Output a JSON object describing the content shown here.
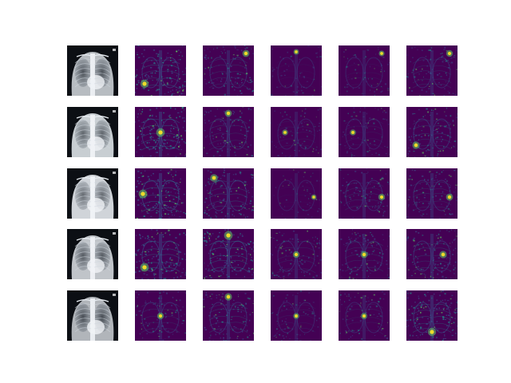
{
  "figure": {
    "rows": 5,
    "columns": 6,
    "column_kinds": [
      "xray",
      "saliency",
      "saliency",
      "saliency",
      "saliency",
      "saliency"
    ],
    "colors": {
      "background": "#ffffff",
      "xray_dark": "#0c0f14",
      "xray_light": "#e8edf2",
      "viridis_low": "#440154",
      "viridis_mid": "#3b528b",
      "viridis_teal": "#21918c",
      "viridis_green": "#5ec962",
      "viridis_high": "#fde725"
    },
    "grid": [
      [
        {
          "kind": "xray",
          "brightness": 0.5
        },
        {
          "kind": "saliency",
          "activity": 0.55,
          "hotspot": "lower-left"
        },
        {
          "kind": "saliency",
          "activity": 0.35,
          "hotspot": "upper-right"
        },
        {
          "kind": "saliency",
          "activity": 0.12,
          "hotspot": "upper-center"
        },
        {
          "kind": "saliency",
          "activity": 0.15,
          "hotspot": "upper-right"
        },
        {
          "kind": "saliency",
          "activity": 0.3,
          "hotspot": "upper-right"
        }
      ],
      [
        {
          "kind": "xray",
          "brightness": 0.7
        },
        {
          "kind": "saliency",
          "activity": 0.6,
          "hotspot": "center"
        },
        {
          "kind": "saliency",
          "activity": 0.35,
          "hotspot": "upper-center"
        },
        {
          "kind": "saliency",
          "activity": 0.18,
          "hotspot": "center-left"
        },
        {
          "kind": "saliency",
          "activity": 0.2,
          "hotspot": "center-left"
        },
        {
          "kind": "saliency",
          "activity": 0.4,
          "hotspot": "lower-left"
        }
      ],
      [
        {
          "kind": "xray",
          "brightness": 0.75
        },
        {
          "kind": "saliency",
          "activity": 0.6,
          "hotspot": "left"
        },
        {
          "kind": "saliency",
          "activity": 0.45,
          "hotspot": "upper-left"
        },
        {
          "kind": "saliency",
          "activity": 0.1,
          "hotspot": "right"
        },
        {
          "kind": "saliency",
          "activity": 0.3,
          "hotspot": "right"
        },
        {
          "kind": "saliency",
          "activity": 0.35,
          "hotspot": "right"
        }
      ],
      [
        {
          "kind": "xray",
          "brightness": 0.6
        },
        {
          "kind": "saliency",
          "activity": 0.6,
          "hotspot": "lower-left"
        },
        {
          "kind": "saliency",
          "activity": 0.6,
          "hotspot": "upper-center"
        },
        {
          "kind": "saliency",
          "activity": 0.3,
          "hotspot": "center"
        },
        {
          "kind": "saliency",
          "activity": 0.35,
          "hotspot": "center"
        },
        {
          "kind": "saliency",
          "activity": 0.4,
          "hotspot": "center-right"
        }
      ],
      [
        {
          "kind": "xray",
          "brightness": 0.45
        },
        {
          "kind": "saliency",
          "activity": 0.3,
          "hotspot": "center"
        },
        {
          "kind": "saliency",
          "activity": 0.4,
          "hotspot": "upper-center"
        },
        {
          "kind": "saliency",
          "activity": 0.2,
          "hotspot": "center"
        },
        {
          "kind": "saliency",
          "activity": 0.25,
          "hotspot": "center"
        },
        {
          "kind": "saliency",
          "activity": 0.55,
          "hotspot": "lower-center"
        }
      ]
    ]
  }
}
